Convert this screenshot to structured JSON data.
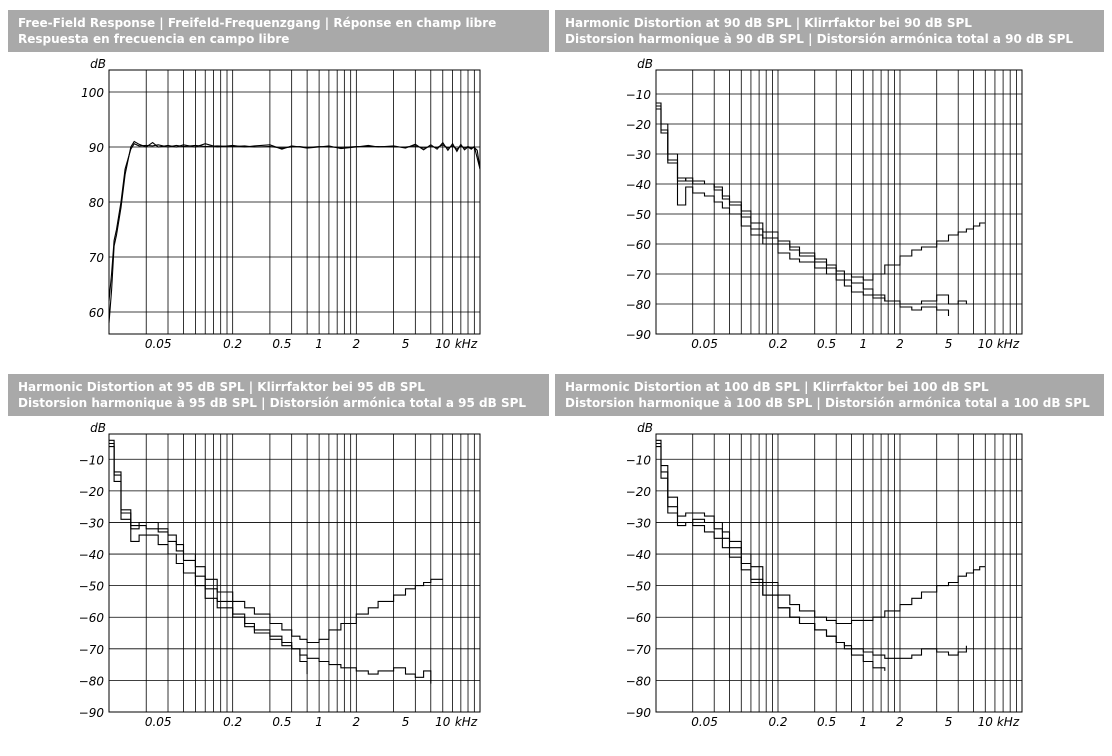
{
  "colors": {
    "header_bg": "#a9a9a9",
    "header_text": "#ffffff",
    "panel_bg": "#f2f2f2",
    "line": "#000000"
  },
  "chart_data": [
    {
      "type": "line",
      "title_line1": "Free-Field Response | Freifeld-Frequenzgang | Réponse en champ libre",
      "title_line2": "Respuesta en frecuencia en campo libre",
      "ylabel": "dB",
      "xlabel": "kHz",
      "x_scale": "log",
      "xlim": [
        0.02,
        20
      ],
      "ylim": [
        56,
        104
      ],
      "yticks": [
        60,
        70,
        80,
        90,
        100
      ],
      "xtick_labels": [
        "0.05",
        "0.2",
        "0.5",
        "1",
        "2",
        "5",
        "10"
      ],
      "grid": true,
      "series": [
        {
          "x": [
            0.02,
            0.021,
            0.022,
            0.023,
            0.025,
            0.027,
            0.03,
            0.032,
            0.035,
            0.04,
            0.045,
            0.05,
            0.06,
            0.07,
            0.08,
            0.1,
            0.12,
            0.15,
            0.2,
            0.25,
            0.3,
            0.4,
            0.5,
            0.6,
            0.7,
            0.8,
            1,
            1.2,
            1.5,
            2,
            2.5,
            3,
            4,
            5,
            6,
            7,
            8,
            9,
            10,
            11,
            12,
            13,
            14,
            15,
            16,
            17,
            18,
            19,
            20
          ],
          "y": [
            58,
            64,
            72,
            74,
            79,
            85,
            90,
            91,
            90.5,
            90,
            90.8,
            90,
            90.3,
            90,
            90.4,
            90,
            90.6,
            90,
            90.3,
            90,
            90.2,
            90.4,
            89.6,
            90.2,
            90,
            89.8,
            90,
            90.2,
            89.7,
            90,
            90.3,
            90,
            90.2,
            89.8,
            90.5,
            89.5,
            90.4,
            89.6,
            90.8,
            89.4,
            90.6,
            89.2,
            90.5,
            89.5,
            90,
            89.6,
            90.1,
            88,
            86
          ]
        },
        {
          "x": [
            0.02,
            0.021,
            0.022,
            0.023,
            0.025,
            0.027,
            0.03,
            0.032,
            0.035,
            0.04,
            0.045,
            0.05,
            0.06,
            0.07,
            0.08,
            0.1,
            0.12,
            0.15,
            0.2,
            0.25,
            0.3,
            0.4,
            0.5,
            0.6,
            0.7,
            0.8,
            1,
            1.2,
            1.5,
            2,
            2.5,
            3,
            4,
            5,
            6,
            7,
            8,
            9,
            10,
            11,
            12,
            13,
            14,
            15,
            16,
            17,
            18,
            19,
            20
          ],
          "y": [
            62,
            67,
            73,
            75,
            80,
            86,
            89.6,
            90.6,
            90.2,
            90.3,
            90.2,
            90.4,
            90,
            90.3,
            90.1,
            90.3,
            90.1,
            90.2,
            90.1,
            90.2,
            90,
            90.1,
            89.8,
            90,
            90.1,
            89.9,
            90.1,
            90,
            89.9,
            90.1,
            90.1,
            90.1,
            90,
            90,
            90.2,
            89.8,
            90.1,
            89.9,
            90.4,
            89.8,
            90.2,
            89.6,
            90.2,
            89.8,
            90.1,
            89.8,
            89.9,
            89.4,
            86
          ]
        }
      ]
    },
    {
      "type": "line",
      "title_line1": "Harmonic Distortion at 90 dB SPL | Klirrfaktor bei 90 dB SPL",
      "title_line2": "Distorsion harmonique à 90 dB SPL | Distorsión armónica total a 90 dB SPL",
      "ylabel": "dB",
      "xlabel": "kHz",
      "x_scale": "log",
      "xlim": [
        0.02,
        20
      ],
      "ylim": [
        -90,
        -2
      ],
      "yticks": [
        -10,
        -20,
        -30,
        -40,
        -50,
        -60,
        -70,
        -80,
        -90
      ],
      "xtick_labels": [
        "0.05",
        "0.2",
        "0.5",
        "1",
        "2",
        "5",
        "10"
      ],
      "grid": true,
      "series": [
        {
          "x": [
            0.02,
            0.022,
            0.025,
            0.03,
            0.035,
            0.04,
            0.05,
            0.06,
            0.07,
            0.08,
            0.1,
            0.12,
            0.15,
            0.2,
            0.25,
            0.3,
            0.4,
            0.5,
            0.6,
            0.7,
            0.8,
            1,
            1.2,
            1.5,
            2,
            2.5,
            3,
            4,
            5,
            6,
            7,
            8,
            9,
            10
          ],
          "y": [
            -14,
            -22,
            -32,
            -39,
            -38,
            -40,
            -40,
            -41,
            -44,
            -46,
            -49,
            -53,
            -56,
            -59,
            -61,
            -63,
            -65,
            -67,
            -69,
            -70,
            -71,
            -72,
            -70,
            -67,
            -64,
            -62,
            -61,
            -59,
            -57,
            -56,
            -55,
            -54,
            -53,
            -53
          ]
        },
        {
          "x": [
            0.02,
            0.022,
            0.025,
            0.03,
            0.035,
            0.04,
            0.05,
            0.06,
            0.07,
            0.08,
            0.1,
            0.12,
            0.15,
            0.2,
            0.25,
            0.3,
            0.4,
            0.5,
            0.6,
            0.7,
            0.8,
            1,
            1.2,
            1.5,
            2,
            2.5,
            3,
            4,
            5,
            6,
            7
          ],
          "y": [
            -13,
            -20,
            -30,
            -47,
            -41,
            -43,
            -44,
            -46,
            -48,
            -50,
            -54,
            -57,
            -60,
            -63,
            -65,
            -66,
            -68,
            -70,
            -72,
            -74,
            -76,
            -77,
            -78,
            -79,
            -80,
            -80,
            -79,
            -77,
            -80,
            -79,
            -80
          ]
        },
        {
          "x": [
            0.02,
            0.022,
            0.025,
            0.03,
            0.035,
            0.04,
            0.05,
            0.06,
            0.07,
            0.08,
            0.1,
            0.12,
            0.15,
            0.2,
            0.25,
            0.3,
            0.4,
            0.5,
            0.6,
            0.7,
            0.8,
            1,
            1.2,
            1.5,
            2,
            2.5,
            3,
            4,
            5
          ],
          "y": [
            -15,
            -23,
            -33,
            -38,
            -39,
            -39,
            -40,
            -42,
            -45,
            -47,
            -51,
            -55,
            -58,
            -60,
            -62,
            -64,
            -66,
            -68,
            -70,
            -72,
            -73,
            -75,
            -77,
            -79,
            -81,
            -82,
            -81,
            -82,
            -84
          ]
        }
      ]
    },
    {
      "type": "line",
      "title_line1": "Harmonic Distortion at 95 dB SPL | Klirrfaktor bei 95 dB SPL",
      "title_line2": "Distorsion harmonique à 95 dB SPL | Distorsión armónica total a 95 dB SPL",
      "ylabel": "dB",
      "xlabel": "kHz",
      "x_scale": "log",
      "xlim": [
        0.02,
        20
      ],
      "ylim": [
        -90,
        -2
      ],
      "yticks": [
        -10,
        -20,
        -30,
        -40,
        -50,
        -60,
        -70,
        -80,
        -90
      ],
      "xtick_labels": [
        "0.05",
        "0.2",
        "0.5",
        "1",
        "2",
        "5",
        "10"
      ],
      "grid": true,
      "series": [
        {
          "x": [
            0.02,
            0.022,
            0.025,
            0.03,
            0.035,
            0.04,
            0.05,
            0.06,
            0.07,
            0.08,
            0.1,
            0.12,
            0.15,
            0.2,
            0.25,
            0.3,
            0.4,
            0.5,
            0.6,
            0.7,
            0.8,
            1,
            1.2,
            1.5,
            2,
            2.5,
            3,
            4,
            5,
            6,
            7,
            8,
            9,
            10
          ],
          "y": [
            -5,
            -15,
            -27,
            -31,
            -30,
            -30,
            -32,
            -34,
            -37,
            -40,
            -44,
            -48,
            -52,
            -55,
            -57,
            -59,
            -62,
            -64,
            -66,
            -67,
            -68,
            -67,
            -64,
            -62,
            -59,
            -57,
            -55,
            -53,
            -51,
            -50,
            -49,
            -48,
            -48,
            -48
          ]
        },
        {
          "x": [
            0.02,
            0.022,
            0.025,
            0.03,
            0.035,
            0.04,
            0.05,
            0.06,
            0.07,
            0.08,
            0.1,
            0.12,
            0.15,
            0.2,
            0.25,
            0.3,
            0.4,
            0.5,
            0.6,
            0.7,
            0.8,
            1,
            1.2,
            1.5,
            2,
            2.5,
            3,
            4,
            5,
            6,
            7,
            8
          ],
          "y": [
            -6,
            -17,
            -29,
            -36,
            -34,
            -34,
            -37,
            -40,
            -43,
            -46,
            -50,
            -54,
            -57,
            -60,
            -63,
            -65,
            -67,
            -69,
            -70,
            -72,
            -73,
            -74,
            -75,
            -76,
            -77,
            -78,
            -77,
            -76,
            -78,
            -79,
            -77,
            -81
          ]
        },
        {
          "x": [
            0.02,
            0.022,
            0.025,
            0.03,
            0.035,
            0.04,
            0.05,
            0.06,
            0.07,
            0.08,
            0.1,
            0.12,
            0.15,
            0.2,
            0.25,
            0.3,
            0.4,
            0.5,
            0.6,
            0.7,
            0.8
          ],
          "y": [
            -4,
            -14,
            -26,
            -32,
            -31,
            -32,
            -33,
            -36,
            -39,
            -42,
            -47,
            -51,
            -55,
            -59,
            -62,
            -64,
            -66,
            -68,
            -70,
            -74,
            -78
          ]
        }
      ]
    },
    {
      "type": "line",
      "title_line1": "Harmonic Distortion at 100 dB SPL | Klirrfaktor bei 100 dB SPL",
      "title_line2": "Distorsion harmonique à 100 dB SPL | Distorsión armónica total a 100 dB SPL",
      "ylabel": "dB",
      "xlabel": "kHz",
      "x_scale": "log",
      "xlim": [
        0.02,
        20
      ],
      "ylim": [
        -90,
        -2
      ],
      "yticks": [
        -10,
        -20,
        -30,
        -40,
        -50,
        -60,
        -70,
        -80,
        -90
      ],
      "xtick_labels": [
        "0.05",
        "0.2",
        "0.5",
        "1",
        "2",
        "5",
        "10"
      ],
      "grid": true,
      "series": [
        {
          "x": [
            0.02,
            0.022,
            0.025,
            0.03,
            0.035,
            0.04,
            0.05,
            0.06,
            0.07,
            0.08,
            0.1,
            0.12,
            0.15,
            0.2,
            0.25,
            0.3,
            0.4,
            0.5,
            0.6,
            0.7,
            0.8,
            1,
            1.2,
            1.5,
            2,
            2.5,
            3,
            4,
            5,
            6,
            7,
            8,
            9,
            10
          ],
          "y": [
            -5,
            -12,
            -22,
            -28,
            -27,
            -27,
            -28,
            -30,
            -33,
            -36,
            -40,
            -44,
            -49,
            -53,
            -56,
            -58,
            -60,
            -61,
            -62,
            -62,
            -61,
            -61,
            -60,
            -58,
            -56,
            -54,
            -52,
            -50,
            -49,
            -47,
            -46,
            -45,
            -44,
            -44
          ]
        },
        {
          "x": [
            0.02,
            0.022,
            0.025,
            0.03,
            0.035,
            0.04,
            0.05,
            0.06,
            0.07,
            0.08,
            0.1,
            0.12,
            0.15,
            0.2,
            0.25,
            0.3,
            0.4,
            0.5,
            0.6,
            0.7,
            0.8,
            1,
            1.2,
            1.5,
            2,
            2.5,
            3,
            4,
            5,
            6,
            7
          ],
          "y": [
            -4,
            -14,
            -25,
            -30,
            -30,
            -29,
            -30,
            -32,
            -35,
            -38,
            -43,
            -48,
            -53,
            -57,
            -60,
            -62,
            -64,
            -66,
            -68,
            -69,
            -70,
            -71,
            -72,
            -73,
            -73,
            -72,
            -70,
            -71,
            -72,
            -71,
            -69
          ]
        },
        {
          "x": [
            0.02,
            0.022,
            0.025,
            0.03,
            0.035,
            0.04,
            0.05,
            0.06,
            0.07,
            0.08,
            0.1,
            0.12,
            0.15,
            0.2,
            0.25,
            0.3,
            0.4,
            0.5,
            0.6,
            0.7,
            0.8,
            1,
            1.2,
            1.5
          ],
          "y": [
            -6,
            -16,
            -27,
            -31,
            -30,
            -31,
            -33,
            -35,
            -38,
            -41,
            -45,
            -49,
            -53,
            -57,
            -60,
            -62,
            -64,
            -66,
            -68,
            -70,
            -72,
            -74,
            -76,
            -77
          ]
        }
      ]
    }
  ]
}
